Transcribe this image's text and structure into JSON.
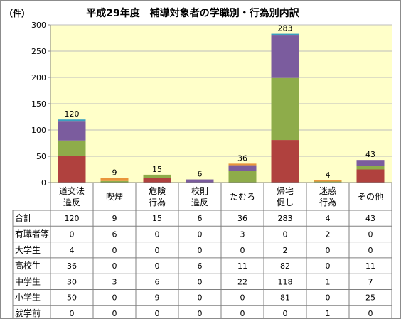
{
  "chart_data": {
    "type": "bar",
    "stacked": true,
    "title": "平成29年度　補導対象者の学職別・行為別内訳",
    "unit_label": "（件）",
    "ylim": [
      0,
      300
    ],
    "yticks": [
      0,
      50,
      100,
      150,
      200,
      250,
      300
    ],
    "grid": true,
    "categories": [
      [
        "道交法",
        "違反"
      ],
      [
        "喫煙"
      ],
      [
        "危険",
        "行為"
      ],
      [
        "校則",
        "違反"
      ],
      [
        "たむろ"
      ],
      [
        "帰宅",
        "促し"
      ],
      [
        "迷惑",
        "行為"
      ],
      [
        "その他"
      ]
    ],
    "totals_label": "合計",
    "totals": [
      120,
      9,
      15,
      6,
      36,
      283,
      4,
      43
    ],
    "series": [
      {
        "name": "就学前",
        "color": "#4bacc6",
        "values": [
          0,
          0,
          0,
          0,
          0,
          0,
          1,
          0
        ]
      },
      {
        "name": "小学生",
        "color": "#b0413e",
        "values": [
          50,
          0,
          9,
          0,
          0,
          81,
          0,
          25
        ]
      },
      {
        "name": "中学生",
        "color": "#8eac4a",
        "values": [
          30,
          3,
          6,
          0,
          22,
          118,
          1,
          7
        ]
      },
      {
        "name": "高校生",
        "color": "#7b5c9e",
        "values": [
          36,
          0,
          0,
          6,
          11,
          82,
          0,
          11
        ]
      },
      {
        "name": "大学生",
        "color": "#3a9fbf",
        "values": [
          4,
          0,
          0,
          0,
          0,
          2,
          0,
          0
        ]
      },
      {
        "name": "有職者等",
        "color": "#e9953b",
        "values": [
          0,
          6,
          0,
          0,
          3,
          0,
          2,
          0
        ]
      }
    ],
    "table_order": [
      "有職者等",
      "大学生",
      "高校生",
      "中学生",
      "小学生",
      "就学前"
    ]
  }
}
